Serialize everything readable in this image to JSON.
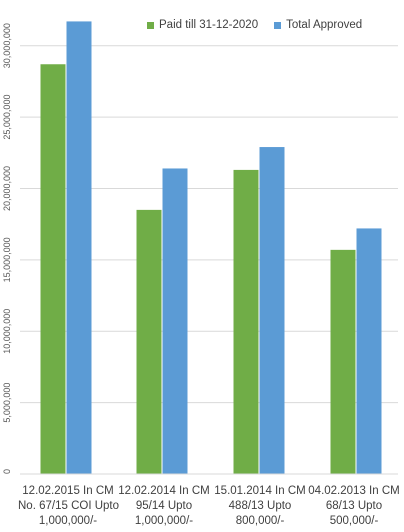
{
  "chart_data": {
    "type": "bar",
    "categories": [
      [
        "12.02.2015 In CM",
        "No. 67/15 COI Upto",
        "1,000,000/-"
      ],
      [
        "12.02.2014 In CM",
        "95/14 Upto",
        "1,000,000/-"
      ],
      [
        "15.01.2014 In CM",
        "488/13 Upto",
        "800,000/-"
      ],
      [
        "04.02.2013 In CM",
        "68/13 Upto",
        "500,000/-"
      ]
    ],
    "series": [
      {
        "name": "Paid till 31-12-2020",
        "color": "#70ad47",
        "values": [
          28700000,
          18500000,
          21300000,
          15700000
        ]
      },
      {
        "name": "Total Approved",
        "color": "#5b9bd5",
        "values": [
          31700000,
          21400000,
          22900000,
          17200000
        ]
      }
    ],
    "yticks": [
      0,
      5000000,
      10000000,
      15000000,
      20000000,
      25000000,
      30000000
    ],
    "ytick_labels": [
      "0",
      "5,000,000",
      "10,000,000",
      "15,000,000",
      "20,000,000",
      "25,000,000",
      "30,000,000"
    ],
    "ylim": [
      0,
      32500000
    ],
    "grid": true,
    "legend_position": "top-right",
    "title": "",
    "xlabel": "",
    "ylabel": ""
  }
}
